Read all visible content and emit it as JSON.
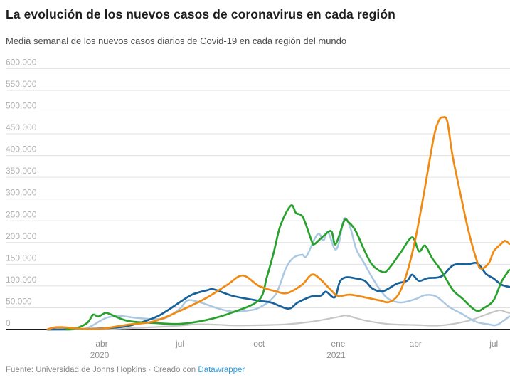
{
  "header": {
    "title": "La evolución de los nuevos casos de coronavirus en cada región",
    "subtitle": "Media semanal de los nuevos casos diarios de Covid-19 en cada región del mundo"
  },
  "footer": {
    "text": "Fuente: Universidad de Johns Hopkins · Creado con",
    "link_label": "Datawrapper",
    "link_color": "#2d9cdb"
  },
  "colors": {
    "grid": "#e0e0e0",
    "axis": "#1a1a1a",
    "y_tick_label": "#b0b0b0",
    "x_tick_label": "#8f8f8f"
  },
  "chart_data": {
    "type": "line",
    "title": "La evolución de los nuevos casos de coronavirus en cada región",
    "subtitle": "Media semanal de los nuevos casos diarios de Covid-19 en cada región del mundo",
    "xlabel": "",
    "ylabel": "",
    "ylim": [
      0,
      600000
    ],
    "grid": true,
    "legend_position": "none",
    "y_ticks": [
      {
        "value": 0,
        "label": "0"
      },
      {
        "value": 50000,
        "label": "50.000"
      },
      {
        "value": 100000,
        "label": "100.000"
      },
      {
        "value": 150000,
        "label": "150.000"
      },
      {
        "value": 200000,
        "label": "200.000"
      },
      {
        "value": 250000,
        "label": "250.000"
      },
      {
        "value": 300000,
        "label": "300.000"
      },
      {
        "value": 350000,
        "label": "350.000"
      },
      {
        "value": 400000,
        "label": "400.000"
      },
      {
        "value": 450000,
        "label": "450.000"
      },
      {
        "value": 500000,
        "label": "500.000"
      },
      {
        "value": 550000,
        "label": "550.000"
      },
      {
        "value": 600000,
        "label": "600.000"
      }
    ],
    "x_ticks": [
      {
        "date": "2020-04-01",
        "label": "abr",
        "sub": "2020"
      },
      {
        "date": "2020-07-01",
        "label": "jul",
        "sub": ""
      },
      {
        "date": "2020-10-01",
        "label": "oct",
        "sub": ""
      },
      {
        "date": "2021-01-01",
        "label": "ene",
        "sub": "2021"
      },
      {
        "date": "2021-04-01",
        "label": "abr",
        "sub": ""
      },
      {
        "date": "2021-07-01",
        "label": "jul",
        "sub": ""
      }
    ],
    "series": [
      {
        "name": "gris",
        "color": "#c6c6c6",
        "width": 2.2,
        "points": [
          [
            "2020-02-15",
            0
          ],
          [
            "2020-04-01",
            1000
          ],
          [
            "2020-05-01",
            3000
          ],
          [
            "2020-06-01",
            5500
          ],
          [
            "2020-07-01",
            9000
          ],
          [
            "2020-07-20",
            12000
          ],
          [
            "2020-08-15",
            11000
          ],
          [
            "2020-09-01",
            9500
          ],
          [
            "2020-10-01",
            10000
          ],
          [
            "2020-11-01",
            12000
          ],
          [
            "2020-12-01",
            18000
          ],
          [
            "2021-01-01",
            29000
          ],
          [
            "2021-01-11",
            32000
          ],
          [
            "2021-02-01",
            21000
          ],
          [
            "2021-03-01",
            12500
          ],
          [
            "2021-04-01",
            10500
          ],
          [
            "2021-05-01",
            9500
          ],
          [
            "2021-06-01",
            20000
          ],
          [
            "2021-06-20",
            33000
          ],
          [
            "2021-07-07",
            44000
          ],
          [
            "2021-07-14",
            41000
          ],
          [
            "2021-07-19",
            38000
          ]
        ]
      },
      {
        "name": "celeste",
        "color": "#abc8e2",
        "width": 2.5,
        "points": [
          [
            "2020-01-29",
            0
          ],
          [
            "2020-03-08",
            1000
          ],
          [
            "2020-03-20",
            8000
          ],
          [
            "2020-04-01",
            22000
          ],
          [
            "2020-04-10",
            29000
          ],
          [
            "2020-04-24",
            31000
          ],
          [
            "2020-05-10",
            27000
          ],
          [
            "2020-06-01",
            24000
          ],
          [
            "2020-06-15",
            27000
          ],
          [
            "2020-07-01",
            48000
          ],
          [
            "2020-07-10",
            67000
          ],
          [
            "2020-07-25",
            62000
          ],
          [
            "2020-08-15",
            48000
          ],
          [
            "2020-09-01",
            41000
          ],
          [
            "2020-09-15",
            43000
          ],
          [
            "2020-10-01",
            50000
          ],
          [
            "2020-10-20",
            80000
          ],
          [
            "2020-11-01",
            140000
          ],
          [
            "2020-11-10",
            165000
          ],
          [
            "2020-11-20",
            172000
          ],
          [
            "2020-11-25",
            168000
          ],
          [
            "2020-12-05",
            210000
          ],
          [
            "2020-12-10",
            220000
          ],
          [
            "2020-12-15",
            205000
          ],
          [
            "2020-12-20",
            225000
          ],
          [
            "2020-12-28",
            185000
          ],
          [
            "2021-01-02",
            200000
          ],
          [
            "2021-01-08",
            255000
          ],
          [
            "2021-01-15",
            235000
          ],
          [
            "2021-01-22",
            185000
          ],
          [
            "2021-02-01",
            150000
          ],
          [
            "2021-02-10",
            118000
          ],
          [
            "2021-02-20",
            88000
          ],
          [
            "2021-03-01",
            70000
          ],
          [
            "2021-03-15",
            62000
          ],
          [
            "2021-04-01",
            70000
          ],
          [
            "2021-04-12",
            79000
          ],
          [
            "2021-04-25",
            76000
          ],
          [
            "2021-05-10",
            52000
          ],
          [
            "2021-05-25",
            36000
          ],
          [
            "2021-06-10",
            18000
          ],
          [
            "2021-06-25",
            12000
          ],
          [
            "2021-07-05",
            11000
          ],
          [
            "2021-07-19",
            30000
          ]
        ]
      },
      {
        "name": "azul",
        "color": "#17629b",
        "width": 2.7,
        "points": [
          [
            "2020-01-29",
            0
          ],
          [
            "2020-03-01",
            500
          ],
          [
            "2020-04-01",
            2500
          ],
          [
            "2020-05-01",
            8000
          ],
          [
            "2020-06-01",
            27000
          ],
          [
            "2020-06-15",
            42000
          ],
          [
            "2020-07-01",
            63000
          ],
          [
            "2020-07-15",
            80000
          ],
          [
            "2020-08-01",
            90000
          ],
          [
            "2020-08-10",
            92000
          ],
          [
            "2020-09-01",
            77000
          ],
          [
            "2020-10-01",
            66000
          ],
          [
            "2020-10-15",
            62000
          ],
          [
            "2020-11-04",
            48000
          ],
          [
            "2020-11-15",
            62000
          ],
          [
            "2020-12-01",
            76000
          ],
          [
            "2020-12-12",
            78000
          ],
          [
            "2020-12-18",
            87000
          ],
          [
            "2020-12-28",
            74000
          ],
          [
            "2021-01-03",
            110000
          ],
          [
            "2021-01-10",
            120000
          ],
          [
            "2021-01-20",
            118000
          ],
          [
            "2021-02-01",
            112000
          ],
          [
            "2021-02-10",
            94000
          ],
          [
            "2021-02-22",
            88000
          ],
          [
            "2021-03-10",
            105000
          ],
          [
            "2021-03-22",
            112000
          ],
          [
            "2021-03-28",
            126000
          ],
          [
            "2021-04-05",
            112000
          ],
          [
            "2021-04-15",
            118000
          ],
          [
            "2021-05-01",
            122000
          ],
          [
            "2021-05-15",
            148000
          ],
          [
            "2021-06-01",
            150000
          ],
          [
            "2021-06-12",
            152000
          ],
          [
            "2021-06-22",
            128000
          ],
          [
            "2021-07-01",
            117000
          ],
          [
            "2021-07-10",
            103000
          ],
          [
            "2021-07-19",
            98000
          ]
        ]
      },
      {
        "name": "verde",
        "color": "#28a22d",
        "width": 2.7,
        "points": [
          [
            "2020-02-20",
            0
          ],
          [
            "2020-03-01",
            2000
          ],
          [
            "2020-03-15",
            15000
          ],
          [
            "2020-03-22",
            34000
          ],
          [
            "2020-03-28",
            30000
          ],
          [
            "2020-04-05",
            38000
          ],
          [
            "2020-04-10",
            36000
          ],
          [
            "2020-05-01",
            20000
          ],
          [
            "2020-06-01",
            15000
          ],
          [
            "2020-07-01",
            13000
          ],
          [
            "2020-08-01",
            22000
          ],
          [
            "2020-09-01",
            40000
          ],
          [
            "2020-10-01",
            68000
          ],
          [
            "2020-10-10",
            120000
          ],
          [
            "2020-10-18",
            177000
          ],
          [
            "2020-10-26",
            240000
          ],
          [
            "2020-11-07",
            285000
          ],
          [
            "2020-11-13",
            268000
          ],
          [
            "2020-11-21",
            258000
          ],
          [
            "2020-12-01",
            205000
          ],
          [
            "2020-12-04",
            196000
          ],
          [
            "2020-12-15",
            215000
          ],
          [
            "2020-12-24",
            226000
          ],
          [
            "2020-12-29",
            196000
          ],
          [
            "2021-01-08",
            250000
          ],
          [
            "2021-01-13",
            247000
          ],
          [
            "2021-01-21",
            228000
          ],
          [
            "2021-02-01",
            180000
          ],
          [
            "2021-02-10",
            148000
          ],
          [
            "2021-02-22",
            132000
          ],
          [
            "2021-03-01",
            140000
          ],
          [
            "2021-03-15",
            178000
          ],
          [
            "2021-03-28",
            212000
          ],
          [
            "2021-04-05",
            180000
          ],
          [
            "2021-04-12",
            193000
          ],
          [
            "2021-04-20",
            165000
          ],
          [
            "2021-05-01",
            135000
          ],
          [
            "2021-05-14",
            92000
          ],
          [
            "2021-05-25",
            72000
          ],
          [
            "2021-06-10",
            44000
          ],
          [
            "2021-06-20",
            50000
          ],
          [
            "2021-07-01",
            68000
          ],
          [
            "2021-07-10",
            110000
          ],
          [
            "2021-07-19",
            137000
          ]
        ]
      },
      {
        "name": "naranja",
        "color": "#f18a12",
        "width": 2.7,
        "points": [
          [
            "2020-01-29",
            500
          ],
          [
            "2020-02-05",
            4500
          ],
          [
            "2020-02-14",
            5500
          ],
          [
            "2020-02-24",
            4000
          ],
          [
            "2020-03-10",
            1500
          ],
          [
            "2020-04-01",
            2000
          ],
          [
            "2020-05-01",
            11000
          ],
          [
            "2020-06-01",
            19000
          ],
          [
            "2020-07-01",
            43000
          ],
          [
            "2020-08-01",
            73000
          ],
          [
            "2020-08-25",
            103000
          ],
          [
            "2020-09-12",
            124000
          ],
          [
            "2020-10-01",
            100000
          ],
          [
            "2020-10-20",
            88000
          ],
          [
            "2020-11-03",
            84000
          ],
          [
            "2020-11-20",
            103000
          ],
          [
            "2020-12-01",
            126000
          ],
          [
            "2020-12-10",
            118000
          ],
          [
            "2020-12-24",
            90000
          ],
          [
            "2021-01-01",
            77000
          ],
          [
            "2021-01-15",
            80000
          ],
          [
            "2021-02-01",
            74000
          ],
          [
            "2021-02-18",
            67000
          ],
          [
            "2021-03-01",
            63000
          ],
          [
            "2021-03-12",
            80000
          ],
          [
            "2021-03-22",
            130000
          ],
          [
            "2021-04-01",
            210000
          ],
          [
            "2021-04-11",
            316000
          ],
          [
            "2021-04-22",
            440000
          ],
          [
            "2021-04-28",
            480000
          ],
          [
            "2021-05-03",
            488000
          ],
          [
            "2021-05-08",
            478000
          ],
          [
            "2021-05-14",
            400000
          ],
          [
            "2021-05-25",
            295000
          ],
          [
            "2021-06-02",
            223000
          ],
          [
            "2021-06-11",
            160000
          ],
          [
            "2021-06-16",
            140000
          ],
          [
            "2021-06-25",
            152000
          ],
          [
            "2021-07-01",
            180000
          ],
          [
            "2021-07-09",
            196000
          ],
          [
            "2021-07-14",
            204000
          ],
          [
            "2021-07-19",
            197000
          ]
        ]
      }
    ]
  }
}
